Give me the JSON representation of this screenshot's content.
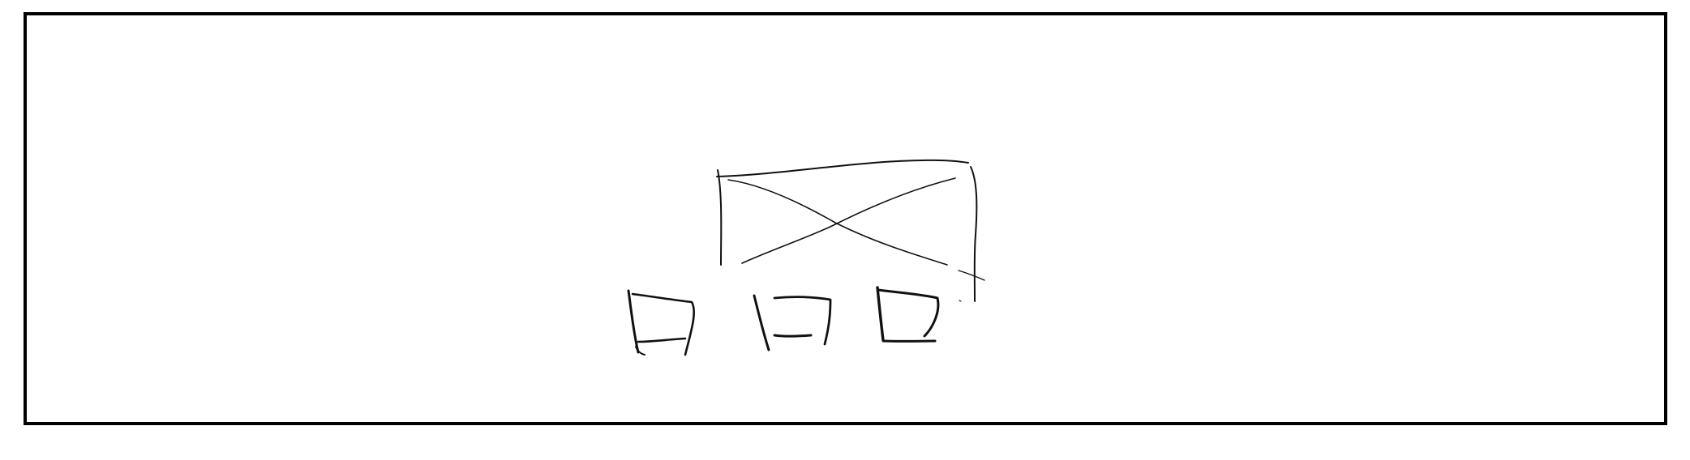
{
  "sketch": {
    "description_visible_text": "",
    "colors": {
      "background": "#ffffff",
      "ink": "#111111",
      "frame": "#000000"
    },
    "elements": {
      "frame": "rectangle-frame",
      "image_placeholder": "crossed-box-placeholder",
      "thumbnails_count": 3
    }
  }
}
